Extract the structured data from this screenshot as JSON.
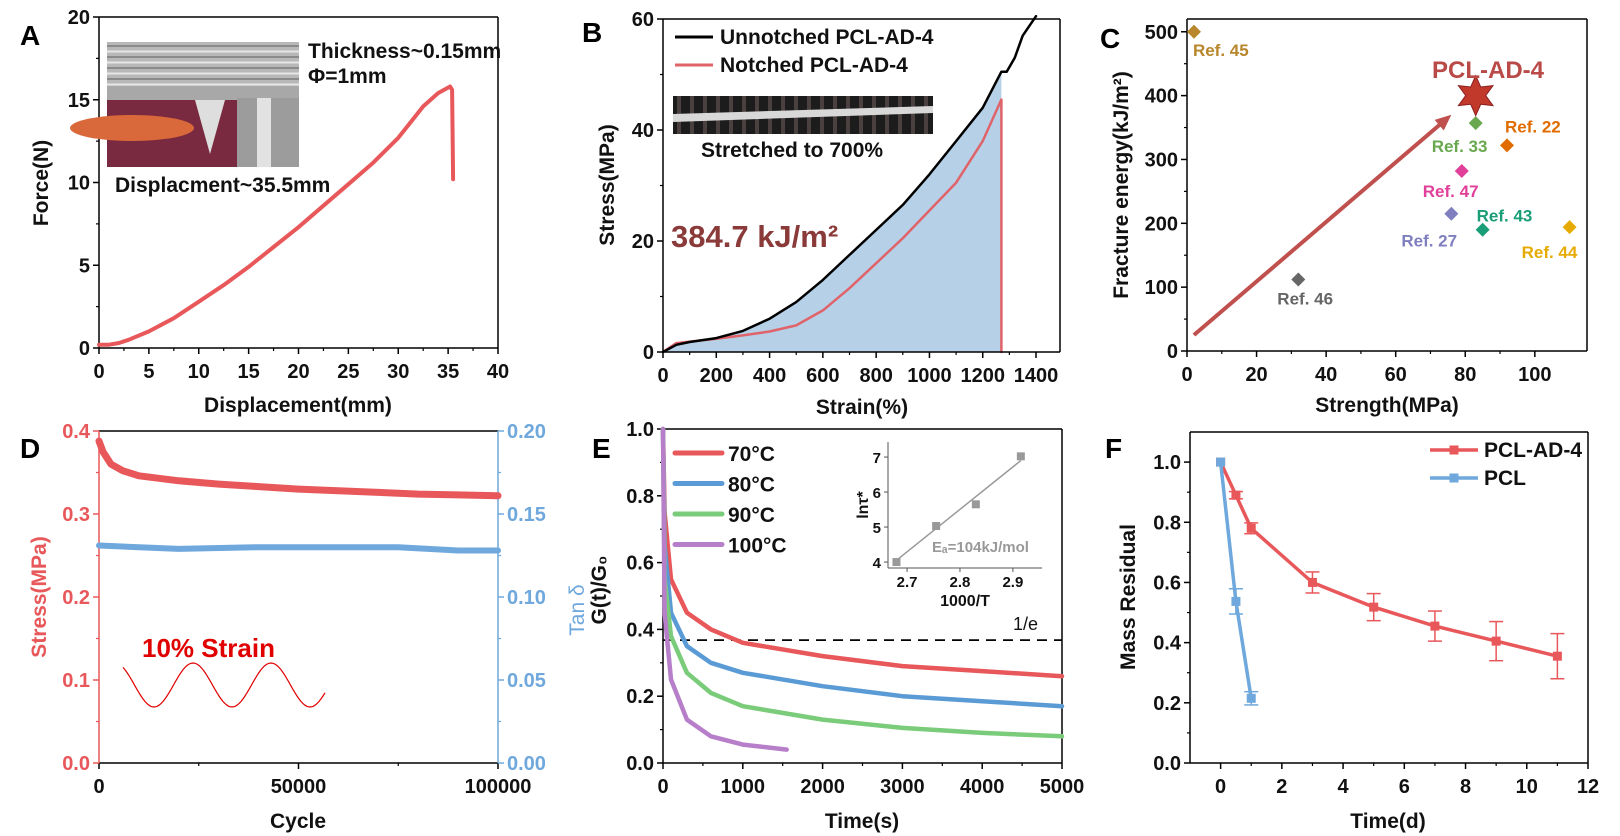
{
  "chart_data": [
    {
      "panel": "A",
      "type": "line",
      "xlabel": "Displacement(mm)",
      "ylabel": "Force(N)",
      "xlim": [
        0,
        40
      ],
      "ylim": [
        0,
        20
      ],
      "xticks": [
        "0",
        "5",
        "10",
        "15",
        "20",
        "25",
        "30",
        "35",
        "40"
      ],
      "yticks": [
        "0",
        "5",
        "10",
        "15",
        "20"
      ],
      "series": [
        {
          "color": "#e8585a",
          "points": [
            [
              0,
              0.2
            ],
            [
              1,
              0.2
            ],
            [
              2,
              0.3
            ],
            [
              3,
              0.5
            ],
            [
              5,
              1.0
            ],
            [
              7.5,
              1.8
            ],
            [
              10,
              2.8
            ],
            [
              12.5,
              3.8
            ],
            [
              15,
              4.9
            ],
            [
              17.5,
              6.1
            ],
            [
              20,
              7.3
            ],
            [
              22.5,
              8.6
            ],
            [
              25,
              9.9
            ],
            [
              27.5,
              11.2
            ],
            [
              30,
              12.7
            ],
            [
              32.5,
              14.6
            ],
            [
              34,
              15.4
            ],
            [
              35.2,
              15.8
            ],
            [
              35.4,
              15.6
            ],
            [
              35.5,
              10.2
            ]
          ]
        }
      ],
      "annotations": [
        "Thickness~0.15mm",
        "Φ=1mm",
        "Displacment~35.5mm"
      ]
    },
    {
      "panel": "B",
      "type": "line",
      "xlabel": "Strain(%)",
      "ylabel": "Stress(MPa)",
      "xlim": [
        0,
        1490
      ],
      "ylim": [
        0,
        60
      ],
      "xticks": [
        "0",
        "200",
        "400",
        "600",
        "800",
        "1000",
        "1200",
        "1400"
      ],
      "yticks": [
        "0",
        "20",
        "40",
        "60"
      ],
      "series": [
        {
          "name": "Unnotched PCL-AD-4",
          "color": "#000000",
          "points": [
            [
              0,
              0
            ],
            [
              50,
              1.3
            ],
            [
              100,
              1.8
            ],
            [
              200,
              2.5
            ],
            [
              300,
              3.8
            ],
            [
              400,
              6
            ],
            [
              500,
              9
            ],
            [
              600,
              13
            ],
            [
              700,
              17.5
            ],
            [
              800,
              22
            ],
            [
              900,
              26.5
            ],
            [
              1000,
              32
            ],
            [
              1100,
              38
            ],
            [
              1200,
              44
            ],
            [
              1270,
              50.5
            ],
            [
              1290,
              50.5
            ],
            [
              1320,
              53
            ],
            [
              1350,
              57
            ],
            [
              1400,
              60.5
            ]
          ]
        },
        {
          "name": "Notched PCL-AD-4",
          "color": "#e0636a",
          "points": [
            [
              0,
              0
            ],
            [
              50,
              1.6
            ],
            [
              200,
              2.4
            ],
            [
              300,
              3
            ],
            [
              400,
              3.7
            ],
            [
              500,
              4.8
            ],
            [
              600,
              7.5
            ],
            [
              700,
              11.5
            ],
            [
              800,
              16
            ],
            [
              900,
              20.5
            ],
            [
              1000,
              25.5
            ],
            [
              1100,
              30.5
            ],
            [
              1200,
              38
            ],
            [
              1270,
              45.5
            ],
            [
              1270,
              0
            ]
          ]
        }
      ],
      "fill_color": "#b6d0e8",
      "annotations": [
        "Stretched to 700%"
      ],
      "highlight": "384.7 kJ/m²",
      "highlight_color": "#8b3a3a"
    },
    {
      "panel": "C",
      "type": "scatter",
      "xlabel": "Strength(MPa)",
      "ylabel": "Fracture energy(kJ/m²)",
      "xlim": [
        0,
        115
      ],
      "ylim": [
        0,
        520
      ],
      "xticks": [
        "0",
        "20",
        "40",
        "60",
        "80",
        "100"
      ],
      "yticks": [
        "0",
        "100",
        "200",
        "300",
        "400",
        "500"
      ],
      "points": [
        {
          "label": "Ref. 45",
          "x": 2,
          "y": 500,
          "color": "#b8862b"
        },
        {
          "label": "Ref. 33",
          "x": 83,
          "y": 357,
          "color": "#6aa84f"
        },
        {
          "label": "Ref. 22",
          "x": 92,
          "y": 322,
          "color": "#e06c00"
        },
        {
          "label": "Ref. 47",
          "x": 79,
          "y": 282,
          "color": "#e0409a"
        },
        {
          "label": "Ref. 27",
          "x": 76,
          "y": 215,
          "color": "#7f7fc0"
        },
        {
          "label": "Ref. 43",
          "x": 85,
          "y": 190,
          "color": "#1a9e77"
        },
        {
          "label": "Ref. 44",
          "x": 110,
          "y": 194,
          "color": "#e6ab02"
        },
        {
          "label": "Ref. 46",
          "x": 32,
          "y": 112,
          "color": "#666666"
        }
      ],
      "highlight": {
        "label": "PCL-AD-4",
        "x": 83,
        "y": 400,
        "color": "#c0392b",
        "marker": "star"
      },
      "arrow": {
        "from": [
          2,
          25
        ],
        "to": [
          76,
          370
        ],
        "color": "#c0504d"
      }
    },
    {
      "panel": "D",
      "type": "line",
      "xlabel": "Cycle",
      "ylabel": "Stress(MPa)",
      "ylabel_right": "Tan δ",
      "xlim": [
        0,
        100000
      ],
      "ylim": [
        0,
        0.4
      ],
      "ylim_right": [
        0,
        0.2
      ],
      "xticks": [
        "0",
        "50000",
        "100000"
      ],
      "yticks": [
        "0.0",
        "0.1",
        "0.2",
        "0.3",
        "0.4"
      ],
      "yticks_right": [
        "0.00",
        "0.05",
        "0.10",
        "0.15",
        "0.20"
      ],
      "left_color": "#e8585a",
      "right_color": "#6fa8dc",
      "series": [
        {
          "axis": "left",
          "color": "#e8585a",
          "points": [
            [
              0,
              0.388
            ],
            [
              1000,
              0.375
            ],
            [
              3000,
              0.36
            ],
            [
              6000,
              0.352
            ],
            [
              10000,
              0.346
            ],
            [
              20000,
              0.34
            ],
            [
              30000,
              0.336
            ],
            [
              40000,
              0.333
            ],
            [
              50000,
              0.33
            ],
            [
              60000,
              0.328
            ],
            [
              70000,
              0.326
            ],
            [
              80000,
              0.324
            ],
            [
              90000,
              0.323
            ],
            [
              100000,
              0.322
            ]
          ]
        },
        {
          "axis": "right",
          "color": "#6fa8dc",
          "points": [
            [
              0,
              0.131
            ],
            [
              20000,
              0.129
            ],
            [
              40000,
              0.13
            ],
            [
              60000,
              0.13
            ],
            [
              75000,
              0.13
            ],
            [
              90000,
              0.128
            ],
            [
              100000,
              0.128
            ]
          ]
        }
      ],
      "annotation": "10% Strain",
      "annotation_color": "#e00000"
    },
    {
      "panel": "E",
      "type": "line",
      "xlabel": "Time(s)",
      "ylabel": "G(t)/G₀",
      "xlim": [
        0,
        5000
      ],
      "ylim": [
        0,
        1
      ],
      "xticks": [
        "0",
        "1000",
        "2000",
        "3000",
        "4000",
        "5000"
      ],
      "yticks": [
        "0.0",
        "0.2",
        "0.4",
        "0.6",
        "0.8",
        "1.0"
      ],
      "series": [
        {
          "name": "70°C",
          "color": "#e8575a",
          "points": [
            [
              0,
              1
            ],
            [
              20,
              0.75
            ],
            [
              100,
              0.55
            ],
            [
              300,
              0.45
            ],
            [
              600,
              0.4
            ],
            [
              1000,
              0.36
            ],
            [
              2000,
              0.32
            ],
            [
              3000,
              0.29
            ],
            [
              4000,
              0.275
            ],
            [
              5000,
              0.26
            ]
          ]
        },
        {
          "name": "80°C",
          "color": "#5b9bd5",
          "points": [
            [
              0,
              1
            ],
            [
              20,
              0.65
            ],
            [
              100,
              0.45
            ],
            [
              300,
              0.35
            ],
            [
              600,
              0.3
            ],
            [
              1000,
              0.27
            ],
            [
              2000,
              0.23
            ],
            [
              3000,
              0.2
            ],
            [
              4000,
              0.185
            ],
            [
              5000,
              0.17
            ]
          ]
        },
        {
          "name": "90°C",
          "color": "#7acc7a",
          "points": [
            [
              0,
              1
            ],
            [
              20,
              0.55
            ],
            [
              100,
              0.38
            ],
            [
              300,
              0.27
            ],
            [
              600,
              0.21
            ],
            [
              1000,
              0.17
            ],
            [
              2000,
              0.13
            ],
            [
              3000,
              0.105
            ],
            [
              4000,
              0.09
            ],
            [
              5000,
              0.08
            ]
          ]
        },
        {
          "name": "100°C",
          "color": "#b77fc9",
          "points": [
            [
              0,
              1
            ],
            [
              20,
              0.45
            ],
            [
              100,
              0.25
            ],
            [
              300,
              0.13
            ],
            [
              600,
              0.08
            ],
            [
              1000,
              0.055
            ],
            [
              1550,
              0.04
            ]
          ]
        }
      ],
      "reference_line": {
        "y": 0.368,
        "label": "1/e"
      },
      "inset": {
        "xlabel": "1000/T",
        "ylabel": "lnτ*",
        "xlim": [
          2.664,
          2.955
        ],
        "ylim": [
          3.83,
          7.43
        ],
        "xticks": [
          "2.7",
          "2.8",
          "2.9"
        ],
        "yticks": [
          "4",
          "5",
          "6",
          "7"
        ],
        "points": [
          [
            2.68,
            4.0
          ],
          [
            2.755,
            5.03
          ],
          [
            2.83,
            5.65
          ],
          [
            2.915,
            7.02
          ]
        ],
        "fit": [
          [
            2.68,
            4.05
          ],
          [
            2.915,
            6.9
          ]
        ],
        "annotation": "Eₐ=104kJ/mol",
        "color": "#999999"
      }
    },
    {
      "panel": "F",
      "type": "line",
      "xlabel": "Time(d)",
      "ylabel": "Mass Residual",
      "xlim": [
        -1,
        12
      ],
      "ylim": [
        0,
        1.1
      ],
      "xticks": [
        "0",
        "2",
        "4",
        "6",
        "8",
        "10",
        "12"
      ],
      "yticks": [
        "0.0",
        "0.2",
        "0.4",
        "0.6",
        "0.8",
        "1.0"
      ],
      "series": [
        {
          "name": "PCL-AD-4",
          "color": "#e8575a",
          "points": [
            [
              0,
              1,
              0
            ],
            [
              0.5,
              0.89,
              0.012
            ],
            [
              1,
              0.78,
              0.018
            ],
            [
              3,
              0.6,
              0.035
            ],
            [
              5,
              0.518,
              0.045
            ],
            [
              7,
              0.455,
              0.05
            ],
            [
              9,
              0.405,
              0.065
            ],
            [
              11,
              0.355,
              0.075
            ]
          ]
        },
        {
          "name": "PCL",
          "color": "#6fa8dc",
          "points": [
            [
              0,
              1,
              0
            ],
            [
              0.5,
              0.537,
              0.042
            ],
            [
              1,
              0.215,
              0.022
            ]
          ]
        }
      ]
    }
  ]
}
